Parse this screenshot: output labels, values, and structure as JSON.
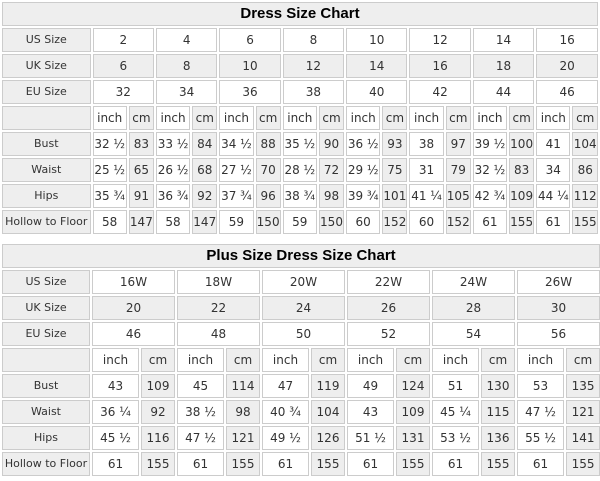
{
  "colors": {
    "shaded_cell": "#eeeeee",
    "plain_cell": "#ffffff",
    "cell_border": "#cccccc",
    "body_text": "#333333",
    "title_text": "#000000"
  },
  "charts": [
    {
      "title": "Dress Size Chart",
      "unit_labels": [
        "inch",
        "cm"
      ],
      "size_rows": [
        {
          "label": "US Size",
          "values": [
            "2",
            "4",
            "6",
            "8",
            "10",
            "12",
            "14",
            "16"
          ]
        },
        {
          "label": "UK Size",
          "values": [
            "6",
            "8",
            "10",
            "12",
            "14",
            "16",
            "18",
            "20"
          ]
        },
        {
          "label": "EU Size",
          "values": [
            "32",
            "34",
            "36",
            "38",
            "40",
            "42",
            "44",
            "46"
          ]
        }
      ],
      "measurement_rows": [
        {
          "label": "Bust",
          "inch": [
            "32 ½",
            "33 ½",
            "34 ½",
            "35 ½",
            "36 ½",
            "38",
            "39 ½",
            "41"
          ],
          "cm": [
            "83",
            "84",
            "88",
            "90",
            "93",
            "97",
            "100",
            "104"
          ]
        },
        {
          "label": "Waist",
          "inch": [
            "25 ½",
            "26 ½",
            "27 ½",
            "28 ½",
            "29 ½",
            "31",
            "32 ½",
            "34"
          ],
          "cm": [
            "65",
            "68",
            "70",
            "72",
            "75",
            "79",
            "83",
            "86"
          ]
        },
        {
          "label": "Hips",
          "inch": [
            "35 ¾",
            "36 ¾",
            "37 ¾",
            "38 ¾",
            "39 ¾",
            "41 ¼",
            "42 ¾",
            "44 ¼"
          ],
          "cm": [
            "91",
            "92",
            "96",
            "98",
            "101",
            "105",
            "109",
            "112"
          ]
        },
        {
          "label": "Hollow to Floor",
          "inch": [
            "58",
            "58",
            "59",
            "59",
            "60",
            "60",
            "61",
            "61"
          ],
          "cm": [
            "147",
            "147",
            "150",
            "150",
            "152",
            "152",
            "155",
            "155"
          ]
        }
      ]
    },
    {
      "title": "Plus Size Dress Size Chart",
      "unit_labels": [
        "inch",
        "cm"
      ],
      "size_rows": [
        {
          "label": "US Size",
          "values": [
            "16W",
            "18W",
            "20W",
            "22W",
            "24W",
            "26W"
          ]
        },
        {
          "label": "UK Size",
          "values": [
            "20",
            "22",
            "24",
            "26",
            "28",
            "30"
          ]
        },
        {
          "label": "EU Size",
          "values": [
            "46",
            "48",
            "50",
            "52",
            "54",
            "56"
          ]
        }
      ],
      "measurement_rows": [
        {
          "label": "Bust",
          "inch": [
            "43",
            "45",
            "47",
            "49",
            "51",
            "53"
          ],
          "cm": [
            "109",
            "114",
            "119",
            "124",
            "130",
            "135"
          ]
        },
        {
          "label": "Waist",
          "inch": [
            "36 ¼",
            "38 ½",
            "40 ¾",
            "43",
            "45 ¼",
            "47 ½"
          ],
          "cm": [
            "92",
            "98",
            "104",
            "109",
            "115",
            "121"
          ]
        },
        {
          "label": "Hips",
          "inch": [
            "45 ½",
            "47 ½",
            "49 ½",
            "51 ½",
            "53 ½",
            "55 ½"
          ],
          "cm": [
            "116",
            "121",
            "126",
            "131",
            "136",
            "141"
          ]
        },
        {
          "label": "Hollow to Floor",
          "inch": [
            "61",
            "61",
            "61",
            "61",
            "61",
            "61"
          ],
          "cm": [
            "155",
            "155",
            "155",
            "155",
            "155",
            "155"
          ]
        }
      ]
    }
  ]
}
